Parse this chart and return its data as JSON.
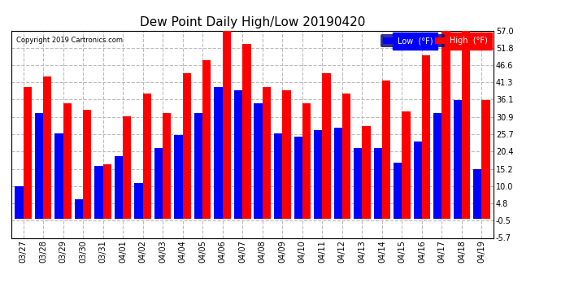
{
  "title": "Dew Point Daily High/Low 20190420",
  "copyright": "Copyright 2019 Cartronics.com",
  "categories": [
    "03/27",
    "03/28",
    "03/29",
    "03/30",
    "03/31",
    "04/01",
    "04/02",
    "04/03",
    "04/04",
    "04/05",
    "04/06",
    "04/07",
    "04/08",
    "04/09",
    "04/10",
    "04/11",
    "04/12",
    "04/13",
    "04/14",
    "04/15",
    "04/16",
    "04/17",
    "04/18",
    "04/19"
  ],
  "low_values": [
    10.0,
    32.0,
    26.0,
    6.0,
    16.0,
    19.0,
    11.0,
    21.5,
    25.5,
    32.0,
    40.0,
    39.0,
    35.0,
    26.0,
    25.0,
    27.0,
    27.5,
    21.5,
    21.5,
    17.0,
    23.5,
    32.0,
    36.0,
    15.0
  ],
  "high_values": [
    40.0,
    43.0,
    35.0,
    33.0,
    16.5,
    31.0,
    38.0,
    32.0,
    44.0,
    48.0,
    58.0,
    53.0,
    40.0,
    39.0,
    35.0,
    44.0,
    38.0,
    28.0,
    42.0,
    32.5,
    49.5,
    57.0,
    57.0,
    36.0
  ],
  "low_color": "#0000ff",
  "high_color": "#ff0000",
  "bg_color": "#ffffff",
  "plot_bg_color": "#ffffff",
  "grid_color": "#bbbbbb",
  "ylim_min": -5.7,
  "ylim_max": 57.0,
  "yticks": [
    -5.7,
    -0.5,
    4.8,
    10.0,
    15.2,
    20.4,
    25.7,
    30.9,
    36.1,
    41.3,
    46.6,
    51.8,
    57.0
  ],
  "bar_width": 0.42,
  "title_fontsize": 11,
  "tick_fontsize": 7,
  "legend_low_label": "Low  (°F)",
  "legend_high_label": "High  (°F)"
}
